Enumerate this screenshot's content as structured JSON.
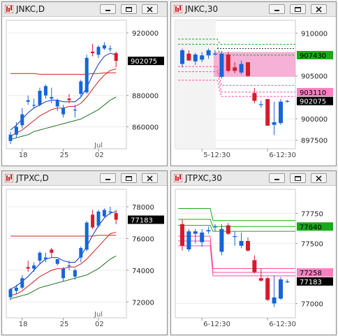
{
  "windows": [
    {
      "id": "jnkc-d",
      "title": "JNKC,D",
      "chart_type": "candlestick",
      "y_ticks": [
        {
          "v": 920000,
          "label": "920000"
        },
        {
          "v": 900000,
          "label": ""
        },
        {
          "v": 880000,
          "label": "880000"
        },
        {
          "v": 860000,
          "label": "860000"
        }
      ],
      "ylim": [
        846000,
        928000
      ],
      "x_tick_labels": [
        "18",
        "25",
        "02"
      ],
      "month_label": "Jul",
      "current_price": {
        "v": 902075,
        "label": "902075"
      },
      "candles": [
        {
          "o": 851000,
          "h": 857000,
          "l": 849000,
          "c": 855000
        },
        {
          "o": 855000,
          "h": 863000,
          "l": 853000,
          "c": 860000
        },
        {
          "o": 861000,
          "h": 872000,
          "l": 859000,
          "c": 868000
        },
        {
          "o": 876000,
          "h": 880000,
          "l": 874000,
          "c": 877000
        },
        {
          "o": 874000,
          "h": 878000,
          "l": 872000,
          "c": 874000
        },
        {
          "o": 874000,
          "h": 885000,
          "l": 873000,
          "c": 883000
        },
        {
          "o": 880000,
          "h": 887000,
          "l": 878000,
          "c": 886000
        },
        {
          "o": 878000,
          "h": 885000,
          "l": 875000,
          "c": 879000
        },
        {
          "o": 873000,
          "h": 878000,
          "l": 870000,
          "c": 877000
        },
        {
          "o": 868000,
          "h": 874000,
          "l": 866000,
          "c": 872000
        },
        {
          "o": 878000,
          "h": 881000,
          "l": 875000,
          "c": 877000
        },
        {
          "o": 871000,
          "h": 874000,
          "l": 866000,
          "c": 871000
        },
        {
          "o": 881000,
          "h": 890000,
          "l": 879000,
          "c": 889000
        },
        {
          "o": 882000,
          "h": 906000,
          "l": 881000,
          "c": 904000
        },
        {
          "o": 908000,
          "h": 913000,
          "l": 905000,
          "c": 907000
        },
        {
          "o": 906000,
          "h": 912000,
          "l": 904000,
          "c": 911000
        },
        {
          "o": 910000,
          "h": 914000,
          "l": 909000,
          "c": 912000
        },
        {
          "o": 910000,
          "h": 912000,
          "l": 908000,
          "c": 910000
        },
        {
          "o": 907000,
          "h": 908000,
          "l": 898000,
          "c": 902075
        }
      ],
      "lines": [
        {
          "color": "#1030c0",
          "y": [
            858000,
            861000,
            865000,
            869000,
            872000,
            874000,
            876000,
            877000,
            877000,
            876000,
            876000,
            876000,
            879000,
            885000,
            893000,
            900000,
            905000,
            907000,
            906000
          ]
        },
        {
          "color": "#d02020",
          "y": [
            854000,
            856000,
            858000,
            861000,
            864000,
            867000,
            869000,
            871000,
            872000,
            872000,
            873000,
            873000,
            875000,
            879000,
            884000,
            889000,
            893000,
            896000,
            897000
          ]
        },
        {
          "color": "#d02020",
          "y": [
            894000,
            894000,
            894000,
            894000,
            894000,
            893500,
            893500,
            893500,
            893500,
            893500,
            893500,
            893500,
            893500,
            893500,
            894000,
            894000,
            894500,
            894500,
            894500
          ]
        },
        {
          "color": "#207020",
          "y": [
            852000,
            853000,
            854000,
            855000,
            857000,
            858000,
            859000,
            860000,
            861000,
            862000,
            863000,
            864000,
            865000,
            867000,
            869000,
            871000,
            874000,
            877000,
            879000
          ]
        }
      ]
    },
    {
      "id": "jnkc-30",
      "title": "JNKC,30",
      "chart_type": "candlestick",
      "y_ticks": [
        {
          "v": 910000,
          "label": "910000"
        },
        {
          "v": 907430,
          "label": ""
        },
        {
          "v": 905000,
          "label": "905000"
        },
        {
          "v": 903110,
          "label": ""
        },
        {
          "v": 900000,
          "label": "900000"
        },
        {
          "v": 897500,
          "label": "897500"
        }
      ],
      "ylim": [
        896500,
        911500
      ],
      "x_tick_labels": [
        "5-12:30",
        "6-12:30"
      ],
      "current_price": {
        "v": 902075,
        "label": "902075"
      },
      "markers": [
        {
          "v": 907430,
          "label": "907430",
          "bg": "#1aa81a",
          "fg": "#000000"
        },
        {
          "v": 903110,
          "label": "903110",
          "bg": "#ff7fbf",
          "fg": "#000000"
        }
      ],
      "candles": [
        {
          "o": 906400,
          "h": 908200,
          "l": 906000,
          "c": 908000
        },
        {
          "o": 907600,
          "h": 908000,
          "l": 906800,
          "c": 906800
        },
        {
          "o": 906700,
          "h": 907700,
          "l": 906300,
          "c": 907500
        },
        {
          "o": 906900,
          "h": 907800,
          "l": 906600,
          "c": 907400
        },
        {
          "o": 907400,
          "h": 908200,
          "l": 907000,
          "c": 908000
        },
        {
          "o": 907600,
          "h": 908000,
          "l": 907400,
          "c": 907600
        },
        {
          "o": 904900,
          "h": 907900,
          "l": 904700,
          "c": 907600
        },
        {
          "o": 907500,
          "h": 907800,
          "l": 905400,
          "c": 905600
        },
        {
          "o": 906000,
          "h": 906600,
          "l": 905300,
          "c": 905600
        },
        {
          "o": 905400,
          "h": 906800,
          "l": 905200,
          "c": 906400
        },
        {
          "o": 906600,
          "h": 906600,
          "l": 904900,
          "c": 905000
        },
        {
          "o": 903000,
          "h": 903600,
          "l": 901800,
          "c": 902100
        },
        {
          "o": 901700,
          "h": 902100,
          "l": 901300,
          "c": 901700
        },
        {
          "o": 902300,
          "h": 902300,
          "l": 899200,
          "c": 899200
        },
        {
          "o": 899300,
          "h": 902000,
          "l": 898100,
          "c": 899600
        },
        {
          "o": 899500,
          "h": 902300,
          "l": 899300,
          "c": 902000
        },
        {
          "o": 902075,
          "h": 902200,
          "l": 901900,
          "c": 902075
        }
      ]
    },
    {
      "id": "jtpxc-d",
      "title": "JTPXC,D",
      "chart_type": "candlestick",
      "y_ticks": [
        {
          "v": 78000,
          "label": "78000"
        },
        {
          "v": 76000,
          "label": "76000"
        },
        {
          "v": 74000,
          "label": "74000"
        },
        {
          "v": 72000,
          "label": "72000"
        }
      ],
      "ylim": [
        71000,
        79100
      ],
      "x_tick_labels": [
        "18",
        "25",
        "02"
      ],
      "month_label": "Jul",
      "current_price": {
        "v": 77183,
        "label": "77183"
      },
      "candles": [
        {
          "o": 72300,
          "h": 72900,
          "l": 72100,
          "c": 72800
        },
        {
          "o": 72700,
          "h": 73100,
          "l": 72500,
          "c": 72900
        },
        {
          "o": 72900,
          "h": 73700,
          "l": 72800,
          "c": 73500
        },
        {
          "o": 74200,
          "h": 74600,
          "l": 73900,
          "c": 74100
        },
        {
          "o": 74100,
          "h": 74500,
          "l": 73900,
          "c": 74300
        },
        {
          "o": 74600,
          "h": 75200,
          "l": 74400,
          "c": 75100
        },
        {
          "o": 74700,
          "h": 75100,
          "l": 74500,
          "c": 74800
        },
        {
          "o": 75300,
          "h": 75400,
          "l": 74800,
          "c": 75100
        },
        {
          "o": 74400,
          "h": 74700,
          "l": 74300,
          "c": 74700
        },
        {
          "o": 73500,
          "h": 74200,
          "l": 73300,
          "c": 74100
        },
        {
          "o": 74300,
          "h": 74600,
          "l": 74000,
          "c": 74300
        },
        {
          "o": 73600,
          "h": 74100,
          "l": 73400,
          "c": 74000
        },
        {
          "o": 74800,
          "h": 75500,
          "l": 74500,
          "c": 75400
        },
        {
          "o": 75300,
          "h": 77100,
          "l": 75200,
          "c": 77000
        },
        {
          "o": 77500,
          "h": 77800,
          "l": 76600,
          "c": 76700
        },
        {
          "o": 76800,
          "h": 77800,
          "l": 76700,
          "c": 77700
        },
        {
          "o": 77400,
          "h": 77900,
          "l": 77300,
          "c": 77800
        },
        {
          "o": 77700,
          "h": 78000,
          "l": 77500,
          "c": 77700
        },
        {
          "o": 77600,
          "h": 77800,
          "l": 76900,
          "c": 77183
        }
      ],
      "lines": [
        {
          "color": "#1030c0",
          "y": [
            72800,
            73000,
            73300,
            73600,
            74000,
            74400,
            74700,
            74800,
            74800,
            74600,
            74500,
            74500,
            74900,
            75500,
            76200,
            76800,
            77300,
            77600,
            77700
          ]
        },
        {
          "color": "#d02020",
          "y": [
            72400,
            72500,
            72700,
            73000,
            73300,
            73600,
            73800,
            74000,
            74100,
            74100,
            74200,
            74200,
            74400,
            74700,
            75100,
            75500,
            75900,
            76300,
            76400
          ]
        },
        {
          "color": "#d02020",
          "y": [
            76150,
            76150,
            76150,
            76150,
            76150,
            76150,
            76150,
            76150,
            76150,
            76150,
            76150,
            76150,
            76150,
            76150,
            76150,
            76200,
            76200,
            76200,
            76200
          ]
        },
        {
          "color": "#207020",
          "y": [
            72200,
            72300,
            72400,
            72500,
            72700,
            72900,
            73000,
            73100,
            73200,
            73300,
            73400,
            73500,
            73600,
            73700,
            73900,
            74100,
            74400,
            74700,
            74900
          ]
        }
      ]
    },
    {
      "id": "jtpxc-30",
      "title": "JTPXC,30",
      "chart_type": "candlestick",
      "y_ticks": [
        {
          "v": 77750,
          "label": "77750"
        },
        {
          "v": 77640,
          "label": ""
        },
        {
          "v": 77500,
          "label": "77500"
        },
        {
          "v": 77258,
          "label": ""
        },
        {
          "v": 77250,
          "label": ""
        },
        {
          "v": 77000,
          "label": "77000"
        }
      ],
      "ylim": [
        76880,
        77950
      ],
      "x_tick_labels": [
        "6-12:30",
        "6-12:30"
      ],
      "current_price": {
        "v": 77183,
        "label": "77183"
      },
      "markers": [
        {
          "v": 77640,
          "label": "77640",
          "bg": "#1aa81a",
          "fg": "#000000"
        },
        {
          "v": 77258,
          "label": "77258",
          "bg": "#ff7fbf",
          "fg": "#000000"
        }
      ],
      "candles": [
        {
          "o": 77660,
          "h": 77700,
          "l": 77440,
          "c": 77480
        },
        {
          "o": 77450,
          "h": 77620,
          "l": 77430,
          "c": 77600
        },
        {
          "o": 77580,
          "h": 77620,
          "l": 77500,
          "c": 77600
        },
        {
          "o": 77510,
          "h": 77620,
          "l": 77470,
          "c": 77590
        },
        {
          "o": 77600,
          "h": 77640,
          "l": 77580,
          "c": 77610
        },
        {
          "o": 77640,
          "h": 77660,
          "l": 77600,
          "c": 77640
        },
        {
          "o": 77430,
          "h": 77660,
          "l": 77400,
          "c": 77620
        },
        {
          "o": 77650,
          "h": 77670,
          "l": 77570,
          "c": 77580
        },
        {
          "o": 77560,
          "h": 77600,
          "l": 77480,
          "c": 77560
        },
        {
          "o": 77480,
          "h": 77590,
          "l": 77460,
          "c": 77520
        },
        {
          "o": 77520,
          "h": 77550,
          "l": 77430,
          "c": 77440
        },
        {
          "o": 77360,
          "h": 77400,
          "l": 77250,
          "c": 77260
        },
        {
          "o": 77210,
          "h": 77290,
          "l": 77180,
          "c": 77190
        },
        {
          "o": 77210,
          "h": 77220,
          "l": 77020,
          "c": 77030
        },
        {
          "o": 77000,
          "h": 77230,
          "l": 76970,
          "c": 77050
        },
        {
          "o": 77040,
          "h": 77220,
          "l": 77030,
          "c": 77200
        },
        {
          "o": 77183,
          "h": 77200,
          "l": 77170,
          "c": 77183
        }
      ]
    }
  ],
  "colors": {
    "up": "#1565d8",
    "down": "#d41c2c",
    "green": "#1aa81a",
    "pink": "#ff7fbf",
    "cur_bg": "#000000",
    "cur_fg": "#ffffff"
  }
}
